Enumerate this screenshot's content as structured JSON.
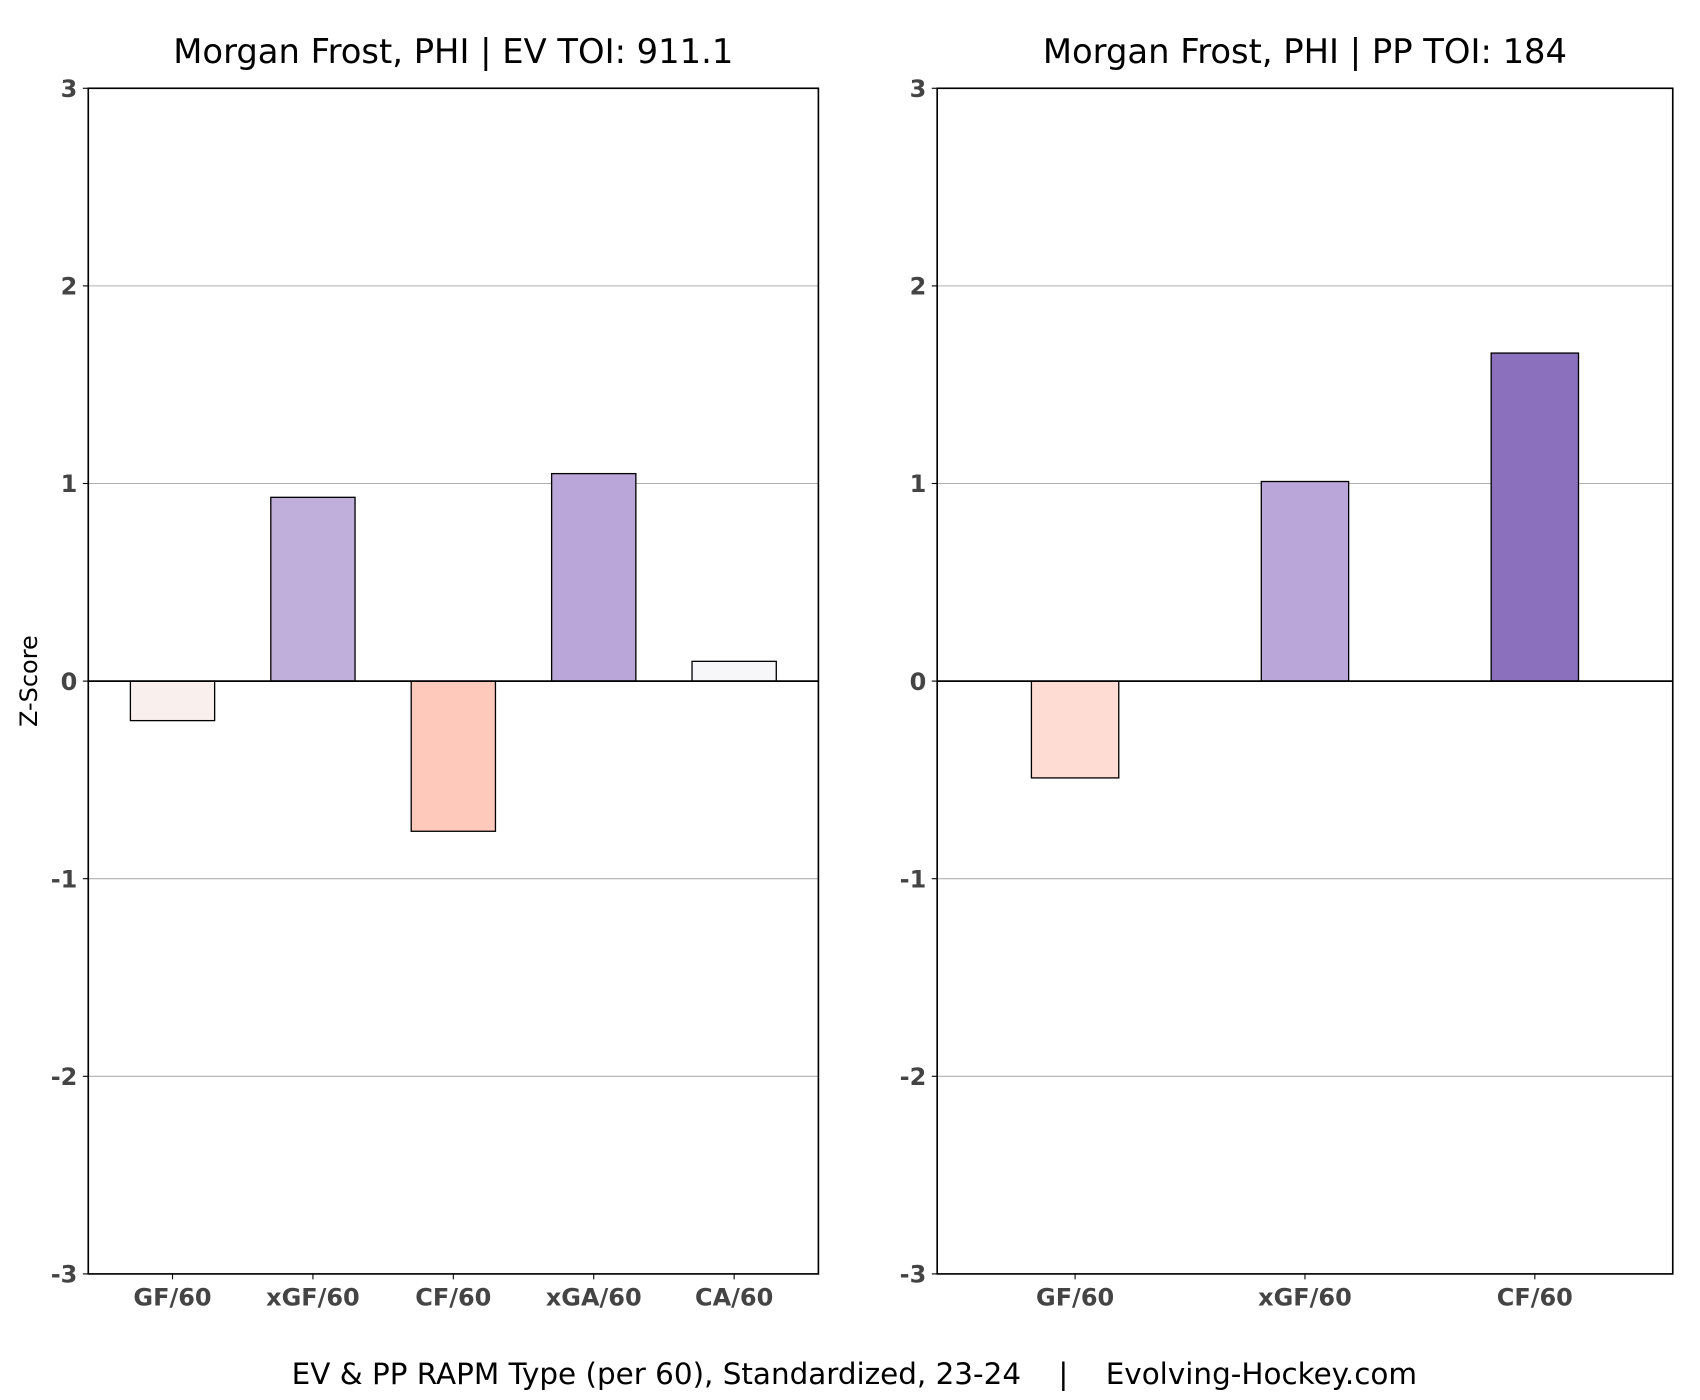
{
  "chart_data": [
    {
      "type": "bar",
      "title": "Morgan Frost, PHI  |  EV TOI: 911.1",
      "ylabel": "Z-Score",
      "ylim": [
        -3,
        3
      ],
      "yticks": [
        "-3",
        "-2",
        "-1",
        "0",
        "1",
        "2",
        "3"
      ],
      "grid": "horizontal",
      "categories": [
        "GF/60",
        "xGF/60",
        "CF/60",
        "xGA/60",
        "CA/60"
      ],
      "values": [
        -0.2,
        0.93,
        -0.76,
        1.05,
        0.1
      ],
      "colors": [
        "#f9efec",
        "#c0aedb",
        "#fec8bb",
        "#baa6d9",
        "#f7f7f9"
      ]
    },
    {
      "type": "bar",
      "title": "Morgan Frost, PHI  |  PP TOI: 184",
      "ylim": [
        -3,
        3
      ],
      "yticks": [
        "-3",
        "-2",
        "-1",
        "0",
        "1",
        "2",
        "3"
      ],
      "grid": "horizontal",
      "categories": [
        "GF/60",
        "xGF/60",
        "CF/60"
      ],
      "values": [
        -0.49,
        1.01,
        1.66
      ],
      "colors": [
        "#fedbd3",
        "#baa6d8",
        "#8b70be"
      ]
    }
  ],
  "footer": "EV & PP RAPM Type (per 60), Standardized, 23-24    |    Evolving-Hockey.com"
}
